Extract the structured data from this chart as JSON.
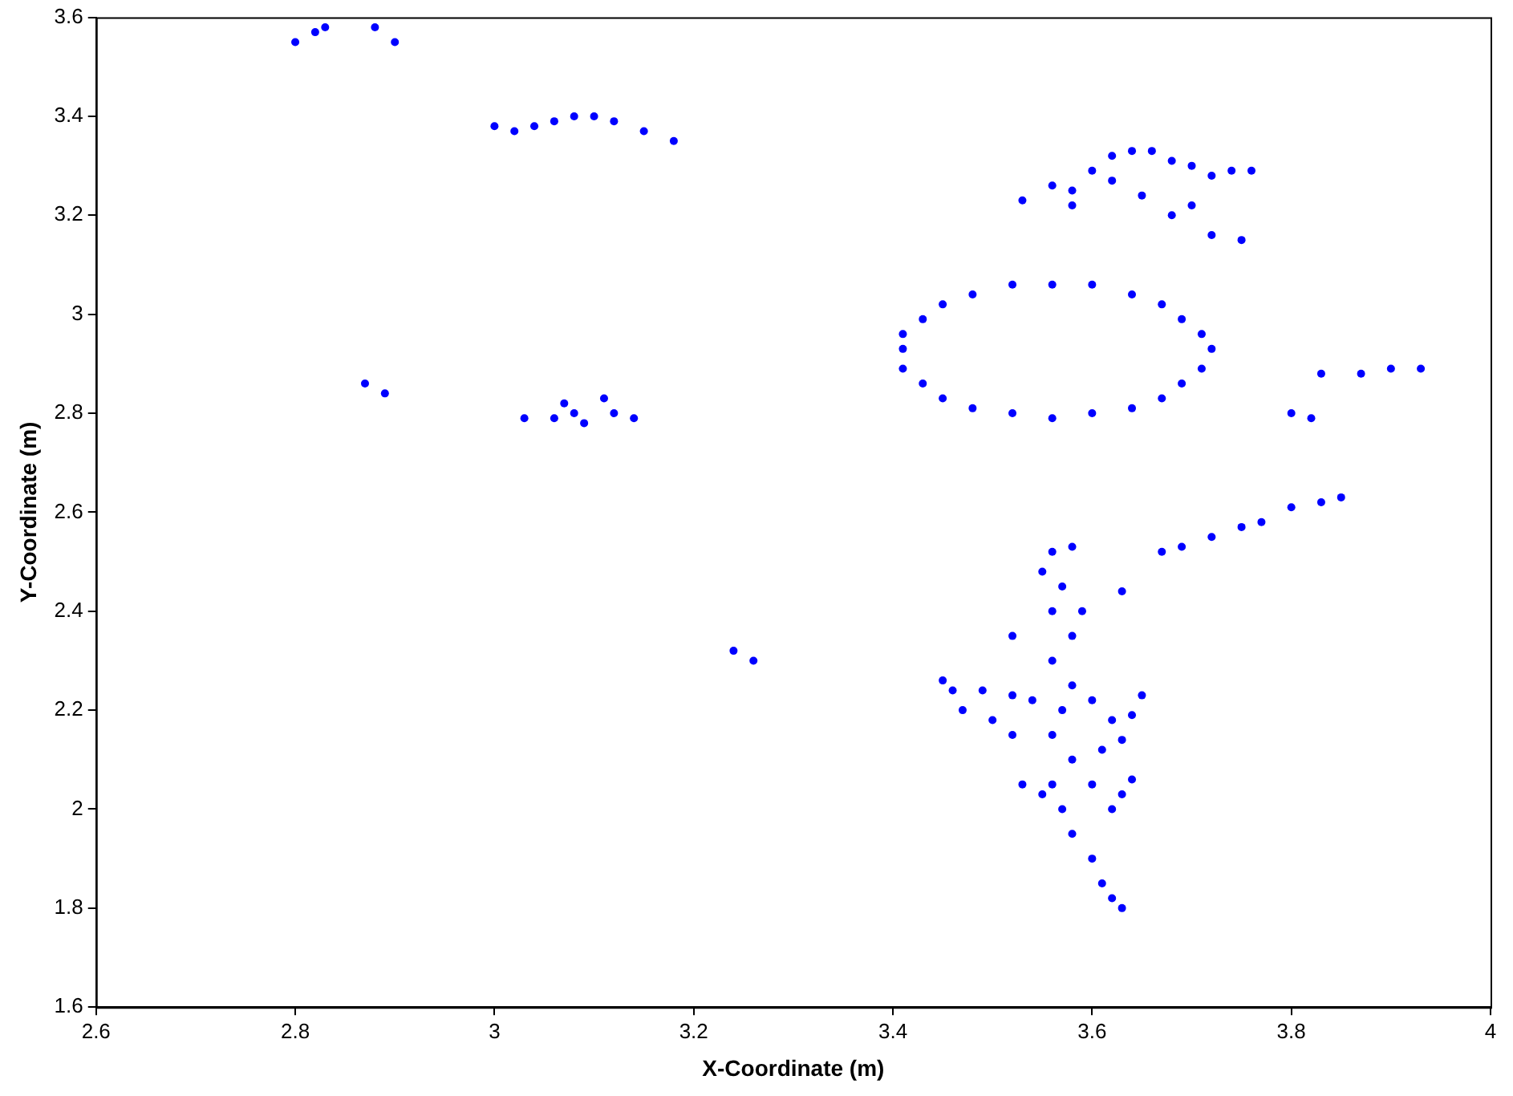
{
  "chart_data": {
    "type": "scatter",
    "xlabel": "X-Coordinate (m)",
    "ylabel": "Y-Coordinate (m)",
    "xlim": [
      2.6,
      4
    ],
    "xticks": [
      2.6,
      2.8,
      3,
      3.2,
      3.4,
      3.6,
      3.8,
      4
    ],
    "ylim": [
      1.6,
      3.6
    ],
    "yticks": [
      1.6,
      1.8,
      2,
      2.2,
      2.4,
      2.6,
      2.8,
      3,
      3.2,
      3.4,
      3.6
    ],
    "grid": false,
    "legend": false,
    "marker": "circle",
    "series": [
      {
        "color": "#0000ff",
        "x": [
          2.8,
          2.82,
          2.83,
          2.88,
          2.9,
          3.0,
          3.02,
          3.04,
          3.06,
          3.08,
          3.1,
          3.12,
          3.15,
          3.18,
          2.87,
          2.89,
          3.03,
          3.06,
          3.08,
          3.09,
          3.11,
          3.12,
          3.14,
          3.07,
          3.24,
          3.26,
          3.72,
          3.71,
          3.69,
          3.67,
          3.64,
          3.6,
          3.56,
          3.52,
          3.48,
          3.45,
          3.43,
          3.41,
          3.41,
          3.41,
          3.43,
          3.45,
          3.48,
          3.52,
          3.56,
          3.6,
          3.64,
          3.67,
          3.69,
          3.71,
          3.53,
          3.56,
          3.58,
          3.6,
          3.62,
          3.64,
          3.66,
          3.68,
          3.62,
          3.65,
          3.7,
          3.72,
          3.74,
          3.7,
          3.68,
          3.72,
          3.75,
          3.76,
          3.58,
          3.8,
          3.82,
          3.83,
          3.87,
          3.9,
          3.93,
          3.67,
          3.69,
          3.72,
          3.75,
          3.77,
          3.8,
          3.83,
          3.85,
          3.56,
          3.58,
          3.57,
          3.56,
          3.58,
          3.56,
          3.58,
          3.57,
          3.56,
          3.58,
          3.56,
          3.57,
          3.58,
          3.6,
          3.61,
          3.62,
          3.63,
          3.55,
          3.59,
          3.46,
          3.49,
          3.52,
          3.54,
          3.47,
          3.45,
          3.5,
          3.52,
          3.6,
          3.62,
          3.64,
          3.65,
          3.53,
          3.55,
          3.6,
          3.63,
          3.64,
          3.62,
          3.61,
          3.63,
          3.52,
          3.63
        ],
        "values": [
          3.55,
          3.57,
          3.58,
          3.58,
          3.55,
          3.38,
          3.37,
          3.38,
          3.39,
          3.4,
          3.4,
          3.39,
          3.37,
          3.35,
          2.86,
          2.84,
          2.79,
          2.79,
          2.8,
          2.78,
          2.83,
          2.8,
          2.79,
          2.82,
          2.32,
          2.3,
          2.93,
          2.96,
          2.99,
          3.02,
          3.04,
          3.06,
          3.06,
          3.06,
          3.04,
          3.02,
          2.99,
          2.96,
          2.93,
          2.89,
          2.86,
          2.83,
          2.81,
          2.8,
          2.79,
          2.8,
          2.81,
          2.83,
          2.86,
          2.89,
          3.23,
          3.26,
          3.25,
          3.29,
          3.32,
          3.33,
          3.33,
          3.31,
          3.27,
          3.24,
          3.3,
          3.28,
          3.29,
          3.22,
          3.2,
          3.16,
          3.15,
          3.29,
          3.22,
          2.8,
          2.79,
          2.88,
          2.88,
          2.89,
          2.89,
          2.52,
          2.53,
          2.55,
          2.57,
          2.58,
          2.61,
          2.62,
          2.63,
          2.52,
          2.53,
          2.45,
          2.4,
          2.35,
          2.3,
          2.25,
          2.2,
          2.15,
          2.1,
          2.05,
          2.0,
          1.95,
          1.9,
          1.85,
          1.82,
          1.8,
          2.48,
          2.4,
          2.24,
          2.24,
          2.23,
          2.22,
          2.2,
          2.26,
          2.18,
          2.15,
          2.22,
          2.18,
          2.19,
          2.23,
          2.05,
          2.03,
          2.05,
          2.03,
          2.06,
          2.0,
          2.12,
          2.14,
          2.35,
          2.44
        ]
      }
    ]
  }
}
